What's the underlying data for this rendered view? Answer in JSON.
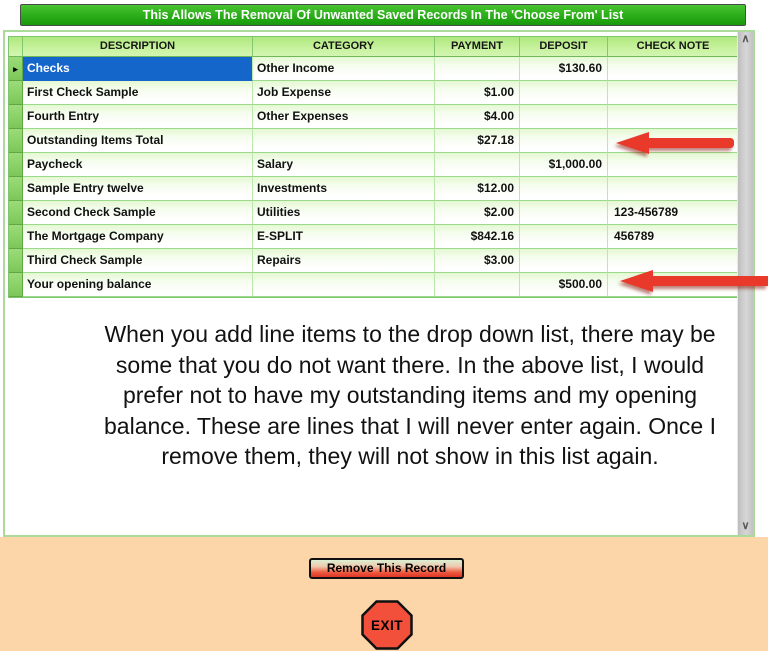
{
  "title_bar": {
    "text": "This Allows The Removal Of Unwanted Saved Records In The 'Choose From' List"
  },
  "table": {
    "columns": [
      "DESCRIPTION",
      "CATEGORY",
      "PAYMENT",
      "DEPOSIT",
      "CHECK NOTE"
    ],
    "rows": [
      {
        "description": "Checks",
        "category": "Other Income",
        "payment": "",
        "deposit": "$130.60",
        "check_note": "",
        "selected": true
      },
      {
        "description": "First Check Sample",
        "category": "Job Expense",
        "payment": "$1.00",
        "deposit": "",
        "check_note": ""
      },
      {
        "description": "Fourth Entry",
        "category": "Other Expenses",
        "payment": "$4.00",
        "deposit": "",
        "check_note": ""
      },
      {
        "description": "Outstanding Items Total",
        "category": "",
        "payment": "$27.18",
        "deposit": "",
        "check_note": "",
        "arrow": true
      },
      {
        "description": "Paycheck",
        "category": "Salary",
        "payment": "",
        "deposit": "$1,000.00",
        "check_note": ""
      },
      {
        "description": "Sample Entry twelve",
        "category": "Investments",
        "payment": "$12.00",
        "deposit": "",
        "check_note": ""
      },
      {
        "description": "Second Check Sample",
        "category": "Utilities",
        "payment": "$2.00",
        "deposit": "",
        "check_note": "123-456789"
      },
      {
        "description": "The Mortgage Company",
        "category": "E-SPLIT",
        "payment": "$842.16",
        "deposit": "",
        "check_note": "456789"
      },
      {
        "description": "Third Check Sample",
        "category": "Repairs",
        "payment": "$3.00",
        "deposit": "",
        "check_note": ""
      },
      {
        "description": "Your opening balance",
        "category": "",
        "payment": "",
        "deposit": "$500.00",
        "check_note": "",
        "arrow": true
      }
    ]
  },
  "explanation": "When you add line items to the drop down list, there may be some that you do not want there. In the above list, I would prefer not to have my outstanding items and my opening balance. These are lines that I will never enter again. Once I remove them, they will not show in this list again.",
  "buttons": {
    "remove": "Remove This Record",
    "exit": "EXIT"
  },
  "icons": {
    "scroll_up": "∧",
    "scroll_down": "∨",
    "row_selector": "▸"
  },
  "colors": {
    "title_green_top": "#4AC433",
    "title_green_bottom": "#179A0A",
    "header_green_top": "#AEE87E",
    "header_green_bottom": "#D2F5B2",
    "selector_green_top": "#9BDC78",
    "selector_green_bottom": "#7CC65A",
    "row_green_tint": "#E4F8D2",
    "grid_line": "#9BD98B",
    "selected_blue": "#1566CB",
    "arrow_red": "#E8392B",
    "peach_background": "#FCD5A8",
    "button_red": "#E03426",
    "exit_red": "#F2503B",
    "scrollbar_gray": "#CDCDCD"
  }
}
